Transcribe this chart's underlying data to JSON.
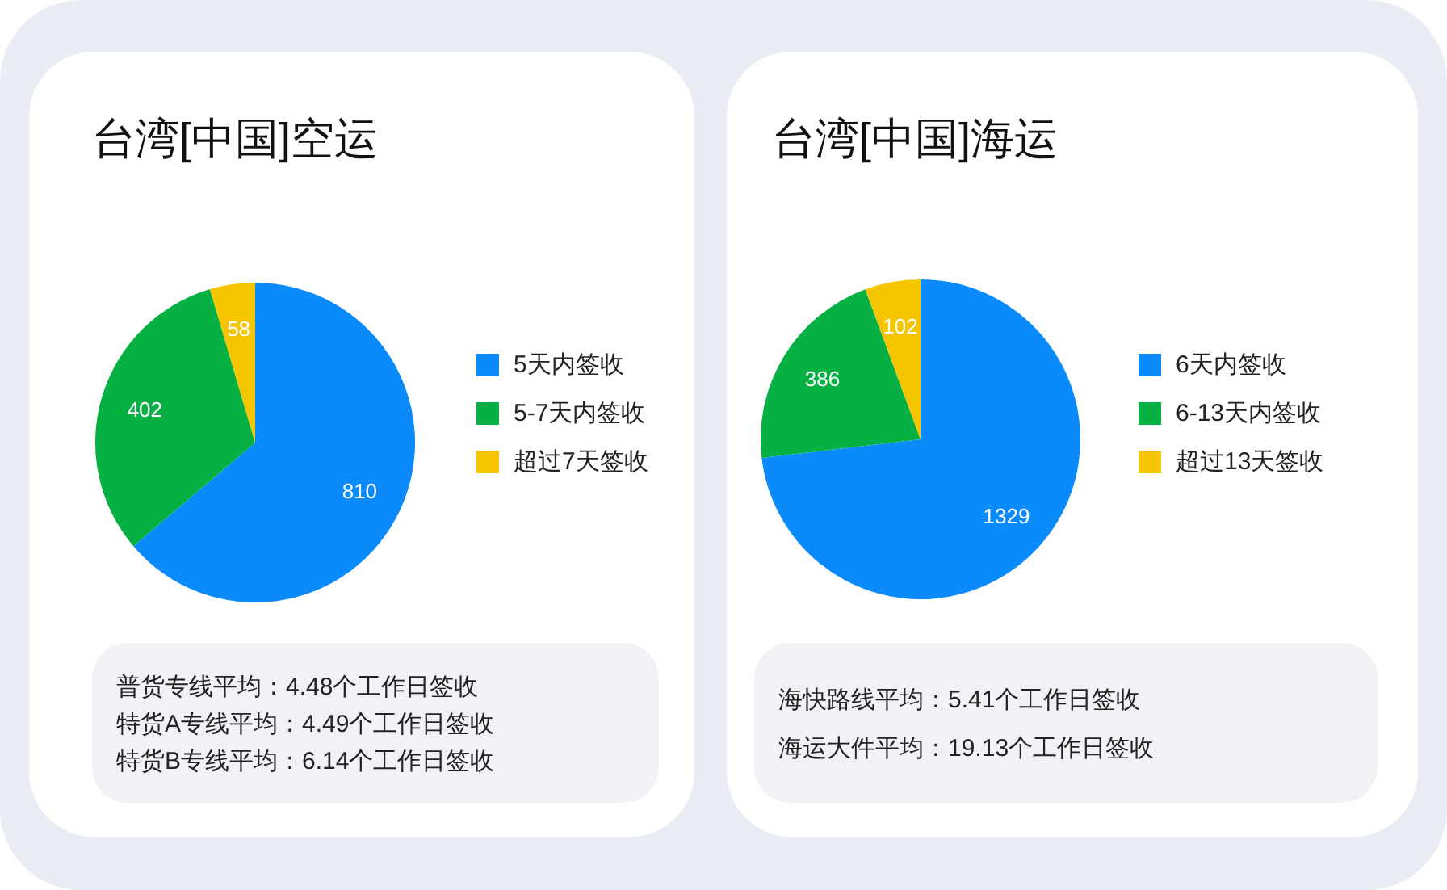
{
  "chart_data": [
    {
      "type": "pie",
      "title": "台湾[中国]空运",
      "categories": [
        "5天内签收",
        "5-7天内签收",
        "超过7天签收"
      ],
      "values": [
        810,
        402,
        58
      ],
      "colors": [
        "#0a8afb",
        "#07b043",
        "#f5c500"
      ],
      "data_labels": true,
      "legend": "right",
      "annotations": [
        "普货专线平均：4.48个工作日签收",
        "特货A专线平均：4.49个工作日签收",
        "特货B专线平均：6.14个工作日签收"
      ]
    },
    {
      "type": "pie",
      "title": "台湾[中国]海运",
      "categories": [
        "6天内签收",
        "6-13天内签收",
        "超过13天签收"
      ],
      "values": [
        1329,
        386,
        102
      ],
      "colors": [
        "#0a8afb",
        "#07b043",
        "#f5c500"
      ],
      "data_labels": true,
      "legend": "right",
      "annotations": [
        "海快路线平均：5.41个工作日签收",
        "海运大件平均：19.13个工作日签收"
      ]
    }
  ]
}
